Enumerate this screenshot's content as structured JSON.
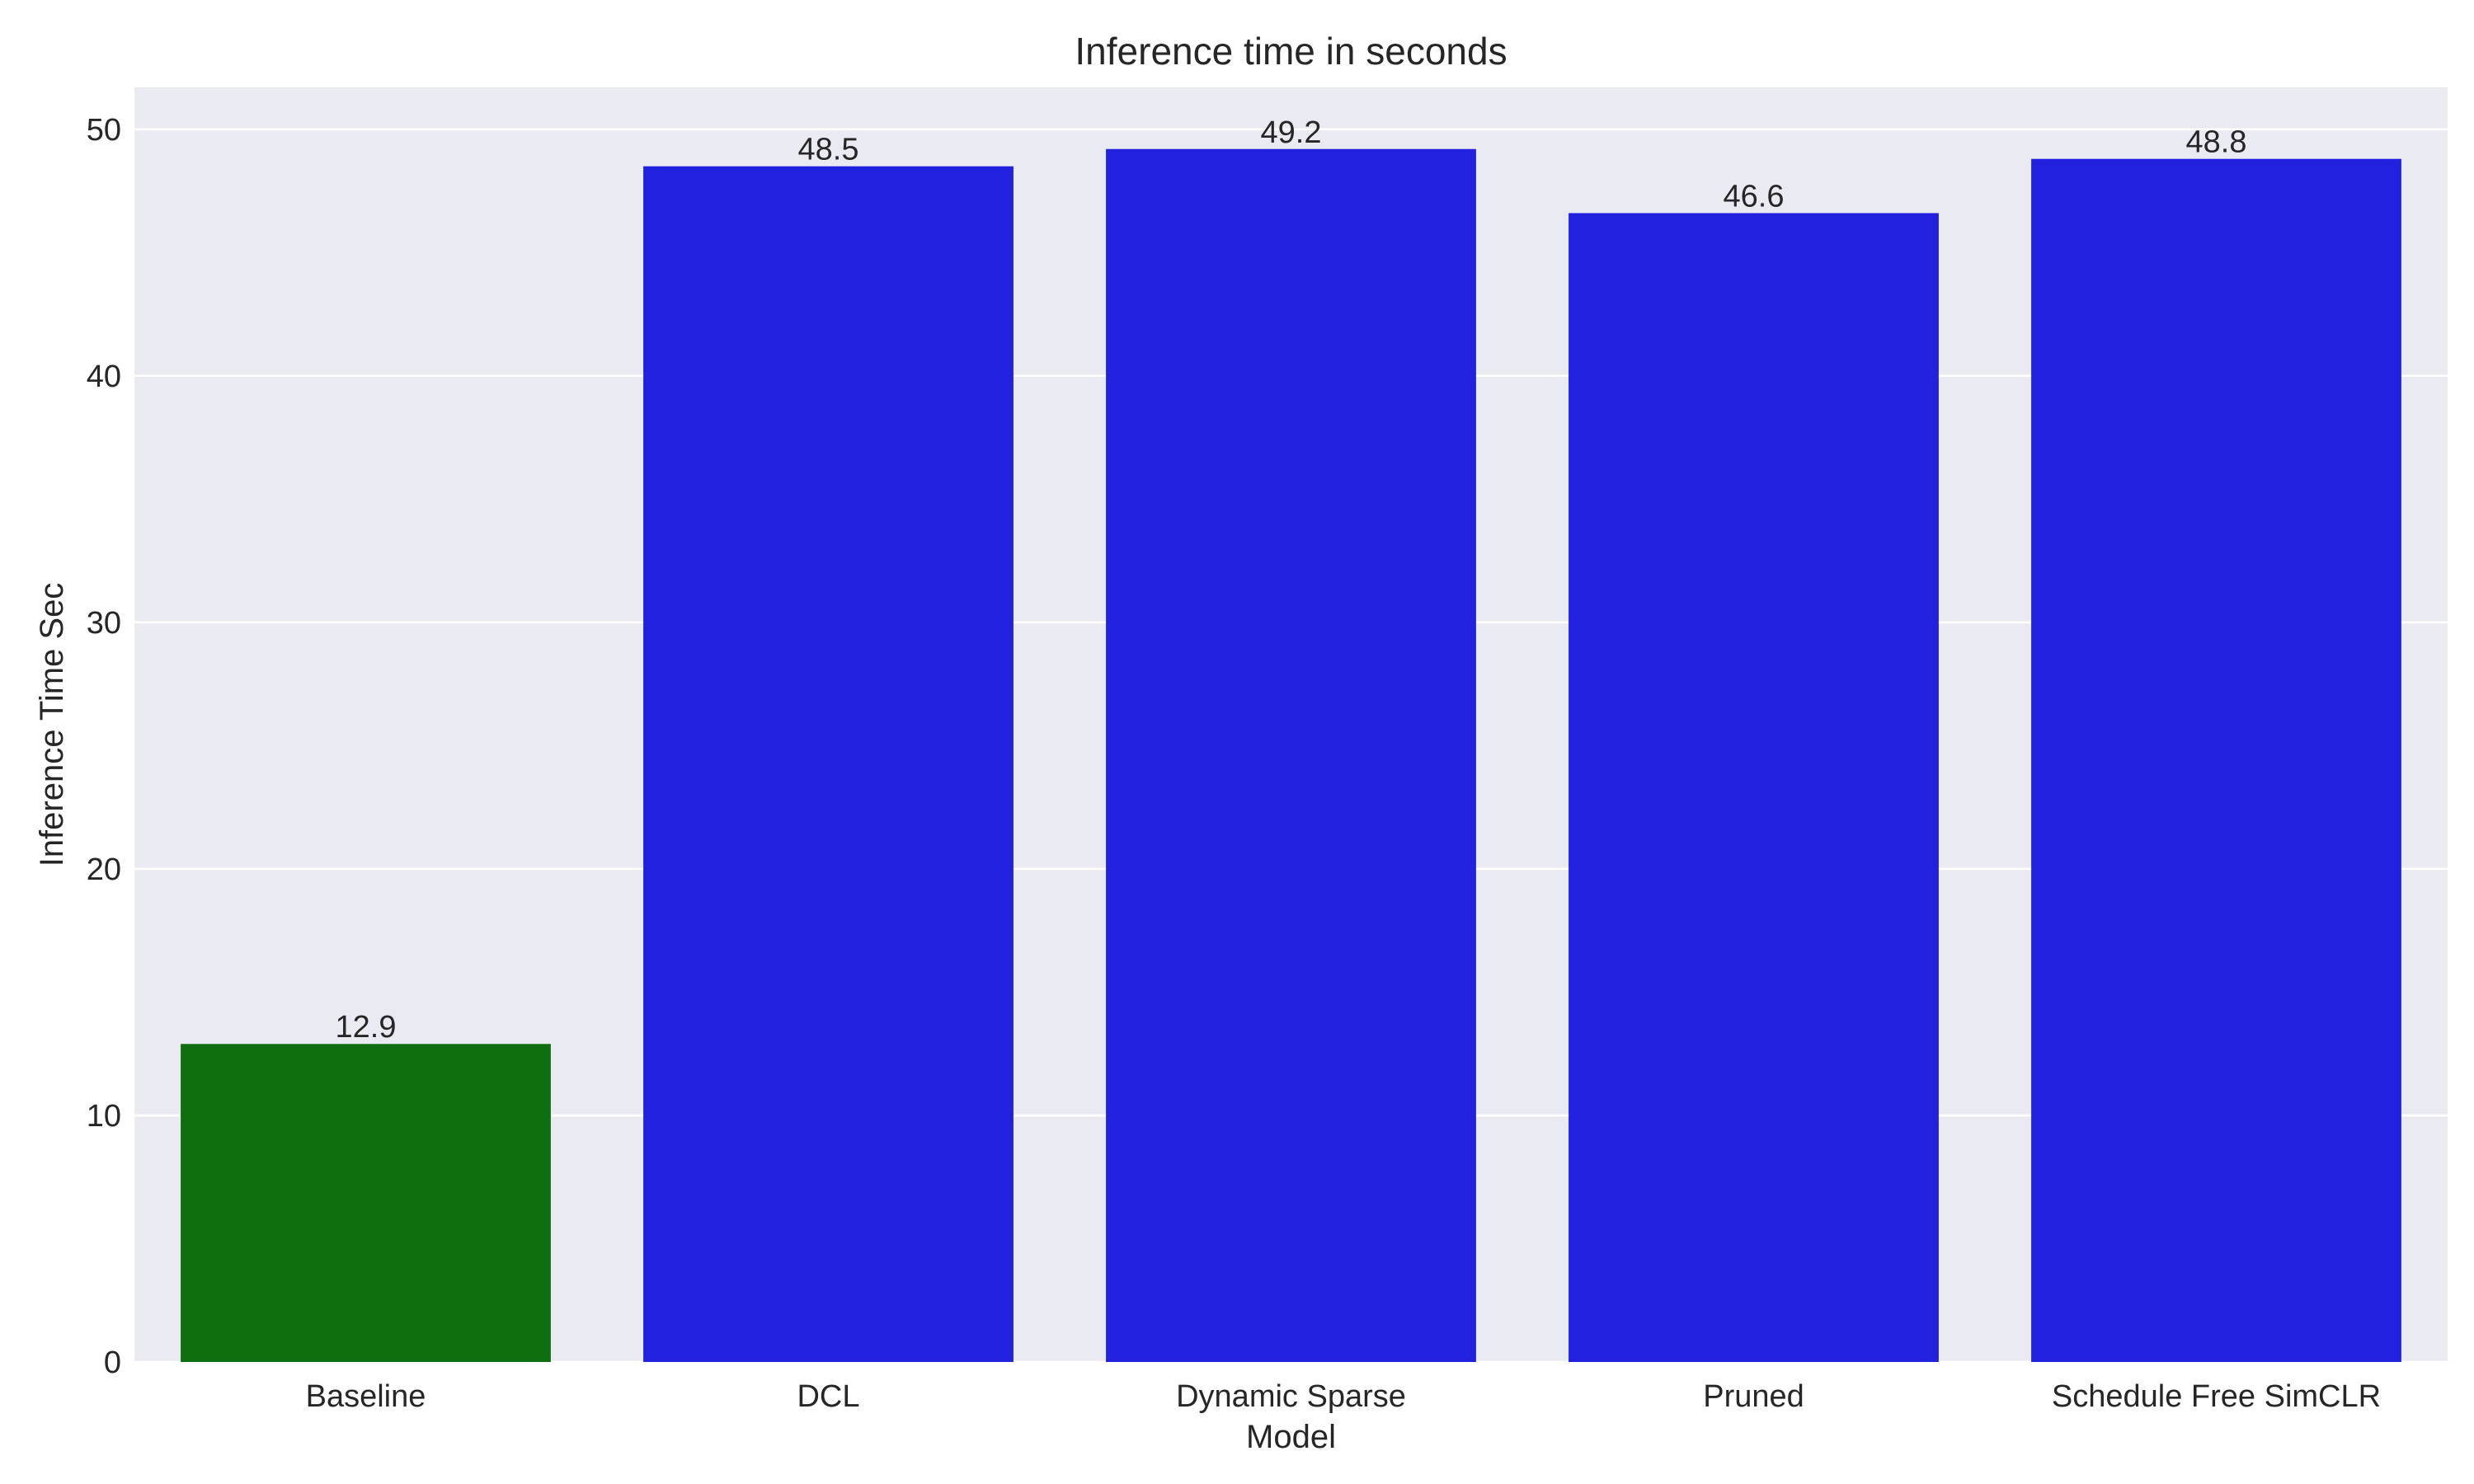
{
  "chart_data": {
    "type": "bar",
    "title": "Inference time in seconds",
    "xlabel": "Model",
    "ylabel": "Inference Time Sec",
    "categories": [
      "Baseline",
      "DCL",
      "Dynamic Sparse",
      "Pruned",
      "Schedule Free SimCLR"
    ],
    "values": [
      12.9,
      48.5,
      49.2,
      46.6,
      48.8
    ],
    "value_labels": [
      "12.9",
      "48.5",
      "49.2",
      "46.6",
      "48.8"
    ],
    "bar_colors": [
      "#0f6e0f",
      "#2121df",
      "#2121df",
      "#2121df",
      "#2121df"
    ],
    "ylim": [
      0,
      51.7
    ],
    "yticks": [
      0,
      10,
      20,
      30,
      40,
      50
    ],
    "grid": true,
    "legend": "none",
    "background": "#eaeaf2"
  }
}
